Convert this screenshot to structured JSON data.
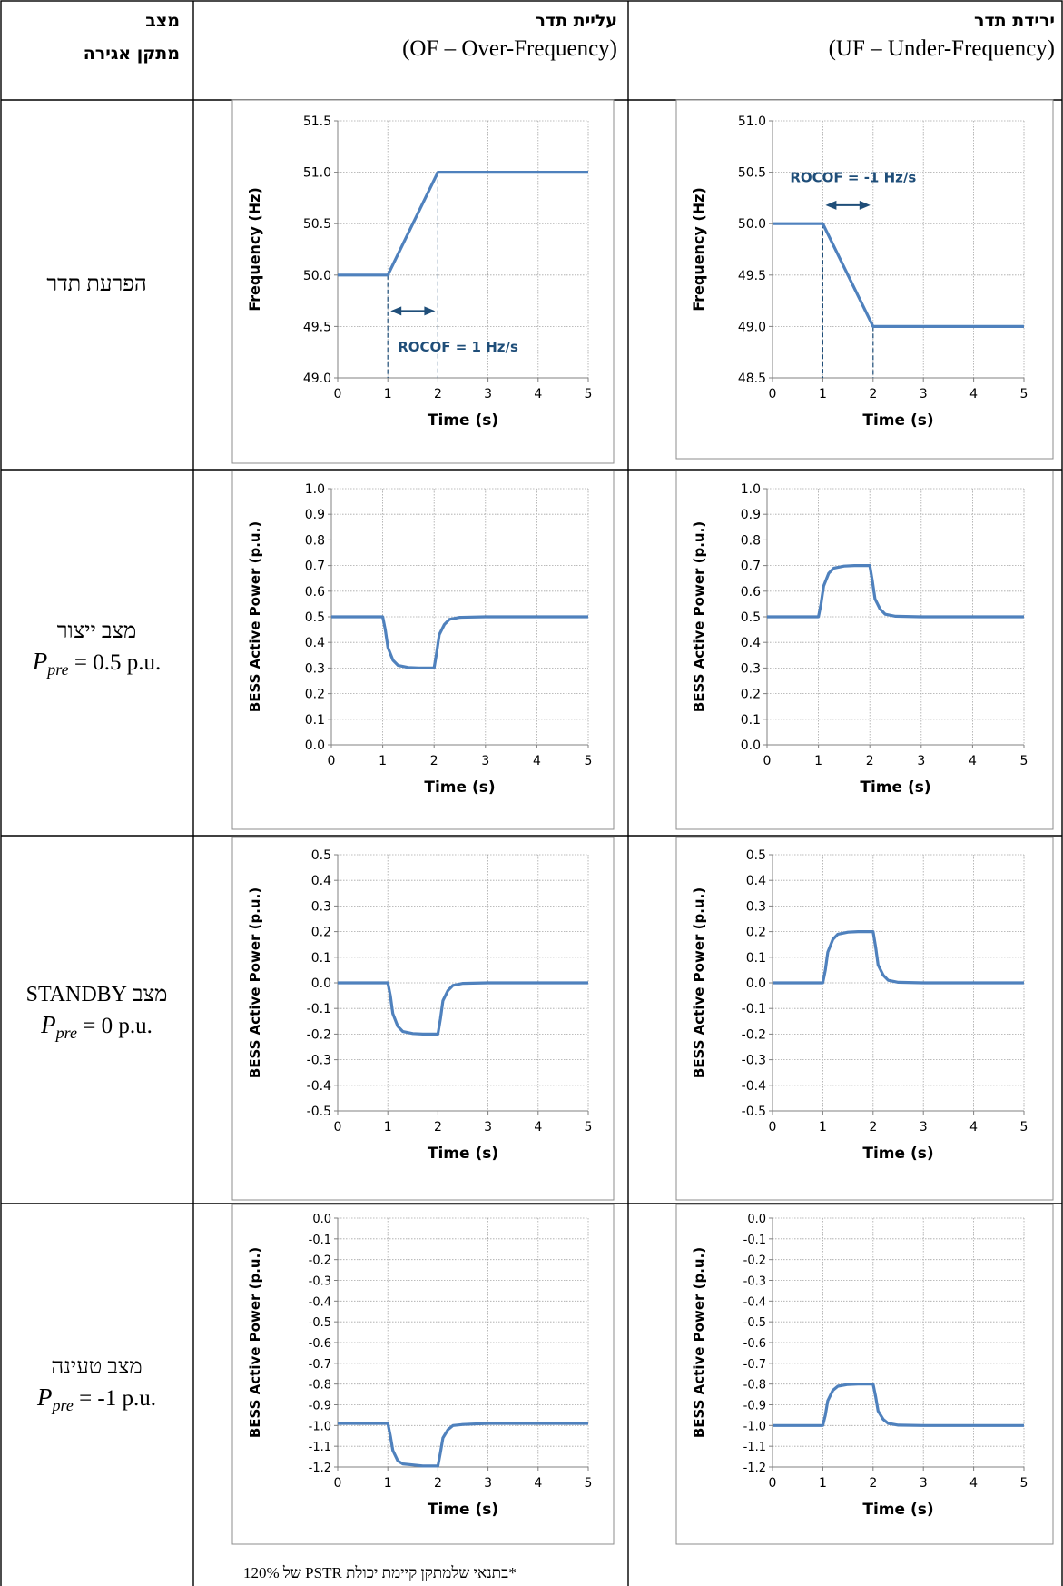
{
  "table": {
    "header_state_line1": "מצב",
    "header_state_line2": "מתקן אגירה",
    "header_of_title": "עליית תדר",
    "header_of_sub": "(OF – Over-Frequency)",
    "header_uf_title": "ירידת תדר",
    "header_uf_sub": "(UF – Under-Frequency)"
  },
  "rows": [
    {
      "label": "הפרעת תדר",
      "ppre_symbol": "",
      "ppre_sub": "",
      "ppre_value": ""
    },
    {
      "label": "מצב ייצור",
      "ppre_symbol": "P",
      "ppre_sub": "pre",
      "ppre_value": " = 0.5 p.u."
    },
    {
      "label": "מצב STANDBY",
      "ppre_symbol": "P",
      "ppre_sub": "pre",
      "ppre_value": " = 0 p.u."
    },
    {
      "label": "מצב טעינה",
      "ppre_symbol": "P",
      "ppre_sub": "pre",
      "ppre_value": " = -1 p.u."
    }
  ],
  "footnote": "*בתנאי שלמתקן קיימת יכולת PSTR של 120%",
  "colors": {
    "line": "#4f81bd",
    "annotation": "#1f4e79",
    "grid": "#a6a6a6",
    "axis": "#808080"
  },
  "chart_data": [
    {
      "type": "line",
      "panel": "of-frequency",
      "xlabel": "Time (s)",
      "ylabel": "Frequency (Hz)",
      "xlim": [
        0,
        5
      ],
      "ylim": [
        49.0,
        51.5
      ],
      "xticks": [
        0,
        1,
        2,
        3,
        4,
        5
      ],
      "yticks": [
        49.0,
        49.5,
        50.0,
        50.5,
        51.0,
        51.5
      ],
      "ydecimals": 1,
      "grid": true,
      "x": [
        0,
        1,
        2,
        5
      ],
      "y": [
        50.0,
        50.0,
        51.0,
        51.0
      ],
      "annotation": {
        "text": "ROCOF = 1 Hz/s",
        "arrow_x": [
          1,
          2
        ],
        "arrow_y": 49.65,
        "text_x": 1.2,
        "text_y": 49.3
      }
    },
    {
      "type": "line",
      "panel": "uf-frequency",
      "xlabel": "Time (s)",
      "ylabel": "Frequency (Hz)",
      "xlim": [
        0,
        5
      ],
      "ylim": [
        48.5,
        51.0
      ],
      "xticks": [
        0,
        1,
        2,
        3,
        4,
        5
      ],
      "yticks": [
        48.5,
        49.0,
        49.5,
        50.0,
        50.5,
        51.0
      ],
      "ydecimals": 1,
      "grid": true,
      "x": [
        0,
        1,
        2,
        5
      ],
      "y": [
        50.0,
        50.0,
        49.0,
        49.0
      ],
      "annotation": {
        "text": "ROCOF = -1 Hz/s",
        "arrow_x": [
          1,
          2
        ],
        "arrow_y": 50.18,
        "text_x": 0.35,
        "text_y": 50.45
      }
    },
    {
      "type": "line",
      "panel": "of-generation",
      "xlabel": "Time (s)",
      "ylabel": "BESS Active Power (p.u.)",
      "xlim": [
        0,
        5
      ],
      "ylim": [
        0.0,
        1.0
      ],
      "xticks": [
        0,
        1,
        2,
        3,
        4,
        5
      ],
      "yticks": [
        0.0,
        0.1,
        0.2,
        0.3,
        0.4,
        0.5,
        0.6,
        0.7,
        0.8,
        0.9,
        1.0
      ],
      "ydecimals": 1,
      "grid": true,
      "x": [
        0,
        1,
        1.05,
        1.1,
        1.2,
        1.3,
        1.5,
        1.7,
        2,
        2.05,
        2.1,
        2.2,
        2.3,
        2.5,
        3,
        5
      ],
      "y": [
        0.5,
        0.5,
        0.45,
        0.38,
        0.33,
        0.31,
        0.302,
        0.3,
        0.3,
        0.36,
        0.43,
        0.47,
        0.49,
        0.498,
        0.5,
        0.5
      ]
    },
    {
      "type": "line",
      "panel": "uf-generation",
      "xlabel": "Time (s)",
      "ylabel": "BESS Active Power (p.u.)",
      "xlim": [
        0,
        5
      ],
      "ylim": [
        0.0,
        1.0
      ],
      "xticks": [
        0,
        1,
        2,
        3,
        4,
        5
      ],
      "yticks": [
        0.0,
        0.1,
        0.2,
        0.3,
        0.4,
        0.5,
        0.6,
        0.7,
        0.8,
        0.9,
        1.0
      ],
      "ydecimals": 1,
      "grid": true,
      "x": [
        0,
        1,
        1.05,
        1.1,
        1.2,
        1.3,
        1.5,
        1.7,
        2,
        2.05,
        2.1,
        2.2,
        2.3,
        2.5,
        3,
        5
      ],
      "y": [
        0.5,
        0.5,
        0.55,
        0.62,
        0.67,
        0.69,
        0.698,
        0.7,
        0.7,
        0.64,
        0.57,
        0.53,
        0.51,
        0.502,
        0.5,
        0.5
      ]
    },
    {
      "type": "line",
      "panel": "of-standby",
      "xlabel": "Time (s)",
      "ylabel": "BESS Active Power (p.u.)",
      "xlim": [
        0,
        5
      ],
      "ylim": [
        -0.5,
        0.5
      ],
      "xticks": [
        0,
        1,
        2,
        3,
        4,
        5
      ],
      "yticks": [
        -0.5,
        -0.4,
        -0.3,
        -0.2,
        -0.1,
        0.0,
        0.1,
        0.2,
        0.3,
        0.4,
        0.5
      ],
      "ydecimals": 1,
      "grid": true,
      "x": [
        0,
        1,
        1.05,
        1.1,
        1.2,
        1.3,
        1.5,
        1.7,
        2,
        2.05,
        2.1,
        2.2,
        2.3,
        2.5,
        3,
        5
      ],
      "y": [
        0.0,
        0.0,
        -0.05,
        -0.12,
        -0.17,
        -0.19,
        -0.198,
        -0.2,
        -0.2,
        -0.14,
        -0.07,
        -0.03,
        -0.01,
        -0.002,
        0.0,
        0.0
      ]
    },
    {
      "type": "line",
      "panel": "uf-standby",
      "xlabel": "Time (s)",
      "ylabel": "BESS Active Power (p.u.)",
      "xlim": [
        0,
        5
      ],
      "ylim": [
        -0.5,
        0.5
      ],
      "xticks": [
        0,
        1,
        2,
        3,
        4,
        5
      ],
      "yticks": [
        -0.5,
        -0.4,
        -0.3,
        -0.2,
        -0.1,
        0.0,
        0.1,
        0.2,
        0.3,
        0.4,
        0.5
      ],
      "ydecimals": 1,
      "grid": true,
      "x": [
        0,
        1,
        1.05,
        1.1,
        1.2,
        1.3,
        1.5,
        1.7,
        2,
        2.05,
        2.1,
        2.2,
        2.3,
        2.5,
        3,
        5
      ],
      "y": [
        0.0,
        0.0,
        0.05,
        0.12,
        0.17,
        0.19,
        0.198,
        0.2,
        0.2,
        0.14,
        0.07,
        0.03,
        0.01,
        0.002,
        0.0,
        0.0
      ]
    },
    {
      "type": "line",
      "panel": "of-charging",
      "xlabel": "Time (s)",
      "ylabel": "BESS Active Power (p.u.)",
      "xlim": [
        0,
        5
      ],
      "ylim": [
        -1.2,
        0.0
      ],
      "xticks": [
        0,
        1,
        2,
        3,
        4,
        5
      ],
      "yticks": [
        -1.2,
        -1.1,
        -1.0,
        -0.9,
        -0.8,
        -0.7,
        -0.6,
        -0.5,
        -0.4,
        -0.3,
        -0.2,
        -0.1,
        0.0
      ],
      "ydecimals": 1,
      "grid": true,
      "x": [
        0,
        1,
        1.05,
        1.1,
        1.2,
        1.3,
        1.5,
        1.7,
        2,
        2.05,
        2.1,
        2.2,
        2.3,
        2.5,
        3,
        5
      ],
      "y": [
        -0.99,
        -0.99,
        -1.05,
        -1.12,
        -1.17,
        -1.185,
        -1.19,
        -1.195,
        -1.195,
        -1.13,
        -1.06,
        -1.02,
        -1.0,
        -0.995,
        -0.99,
        -0.99
      ]
    },
    {
      "type": "line",
      "panel": "uf-charging",
      "xlabel": "Time (s)",
      "ylabel": "BESS Active Power (p.u.)",
      "xlim": [
        0,
        5
      ],
      "ylim": [
        -1.2,
        0.0
      ],
      "xticks": [
        0,
        1,
        2,
        3,
        4,
        5
      ],
      "yticks": [
        -1.2,
        -1.1,
        -1.0,
        -0.9,
        -0.8,
        -0.7,
        -0.6,
        -0.5,
        -0.4,
        -0.3,
        -0.2,
        -0.1,
        0.0
      ],
      "ydecimals": 1,
      "grid": true,
      "x": [
        0,
        1,
        1.05,
        1.1,
        1.2,
        1.3,
        1.5,
        1.7,
        2,
        2.05,
        2.1,
        2.2,
        2.3,
        2.5,
        3,
        5
      ],
      "y": [
        -1.0,
        -1.0,
        -0.95,
        -0.88,
        -0.83,
        -0.81,
        -0.802,
        -0.8,
        -0.8,
        -0.86,
        -0.93,
        -0.97,
        -0.99,
        -0.998,
        -1.0,
        -1.0
      ]
    }
  ]
}
